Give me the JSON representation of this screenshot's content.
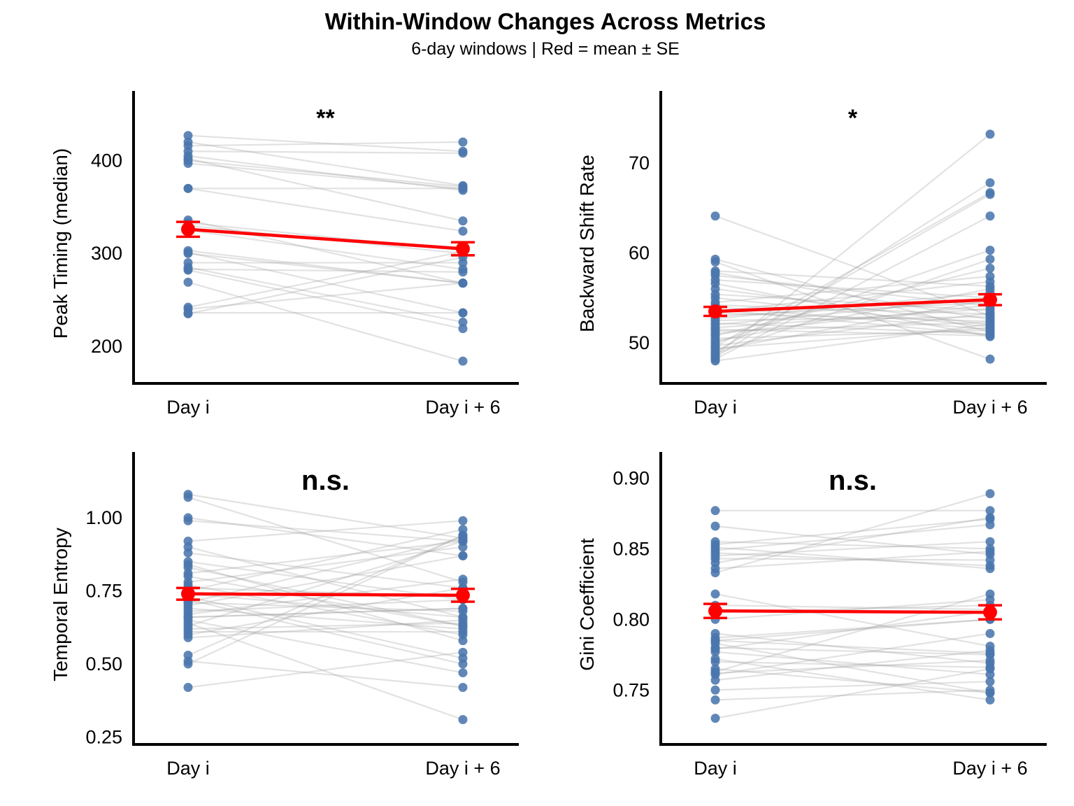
{
  "title": "Within-Window Changes Across Metrics",
  "subtitle": "6-day windows | Red = mean ± SE",
  "colors": {
    "point": "#4a76ad",
    "line": "#9e9e9e",
    "mean": "#ff0000",
    "axis": "#000000"
  },
  "chart_data": [
    {
      "type": "scatter",
      "title": "",
      "categories": [
        "Day i",
        "Day i + 6"
      ],
      "ylabel": "Peak Timing (median)",
      "ylim": [
        160,
        475
      ],
      "yticks": [
        200,
        300,
        400
      ],
      "significance": "**",
      "mean": [
        326,
        305
      ],
      "se": [
        8,
        7
      ],
      "pairs": [
        [
          427,
          410
        ],
        [
          420,
          373
        ],
        [
          416,
          420
        ],
        [
          410,
          408
        ],
        [
          405,
          368
        ],
        [
          402,
          335
        ],
        [
          400,
          372
        ],
        [
          397,
          370
        ],
        [
          370,
          324
        ],
        [
          370,
          370
        ],
        [
          336,
          268
        ],
        [
          333,
          303
        ],
        [
          330,
          300
        ],
        [
          325,
          283
        ],
        [
          303,
          268
        ],
        [
          301,
          236
        ],
        [
          300,
          268
        ],
        [
          290,
          290
        ],
        [
          285,
          226
        ],
        [
          283,
          280
        ],
        [
          282,
          219
        ],
        [
          269,
          184
        ],
        [
          242,
          302
        ],
        [
          240,
          268
        ],
        [
          236,
          236
        ],
        [
          235,
          296
        ]
      ]
    },
    {
      "type": "scatter",
      "title": "",
      "categories": [
        "Day i",
        "Day i + 6"
      ],
      "ylabel": "Backward Shift Rate",
      "ylim": [
        45.5,
        78
      ],
      "yticks": [
        50,
        60,
        70
      ],
      "significance": "*",
      "mean": [
        53.5,
        54.8
      ],
      "se": [
        0.5,
        0.6
      ],
      "pairs": [
        [
          64.1,
          53.0
        ],
        [
          59.3,
          51.2
        ],
        [
          59.0,
          48.2
        ],
        [
          58.0,
          56.3
        ],
        [
          57.8,
          52.6
        ],
        [
          57.5,
          54.1
        ],
        [
          57.0,
          55.0
        ],
        [
          56.6,
          50.7
        ],
        [
          56.0,
          52.0
        ],
        [
          55.4,
          53.6
        ],
        [
          55.0,
          51.8
        ],
        [
          54.5,
          57.4
        ],
        [
          54.2,
          53.2
        ],
        [
          54.0,
          51.5
        ],
        [
          53.7,
          50.9
        ],
        [
          53.5,
          56.8
        ],
        [
          53.3,
          52.4
        ],
        [
          53.0,
          54.5
        ],
        [
          52.7,
          55.6
        ],
        [
          52.5,
          52.9
        ],
        [
          52.2,
          51.0
        ],
        [
          52.0,
          55.0
        ],
        [
          51.7,
          53.8
        ],
        [
          51.3,
          52.3
        ],
        [
          51.0,
          54.2
        ],
        [
          50.8,
          58.3
        ],
        [
          50.5,
          51.4
        ],
        [
          50.2,
          56.0
        ],
        [
          50.0,
          60.3
        ],
        [
          49.7,
          53.3
        ],
        [
          49.4,
          51.7
        ],
        [
          49.2,
          54.8
        ],
        [
          49.0,
          66.5
        ],
        [
          48.8,
          59.3
        ],
        [
          48.6,
          73.2
        ],
        [
          48.4,
          67.8
        ],
        [
          48.2,
          64.1
        ],
        [
          48.0,
          52.1
        ],
        [
          49.6,
          66.7
        ],
        [
          51.5,
          50.8
        ]
      ]
    },
    {
      "type": "scatter",
      "title": "",
      "categories": [
        "Day i",
        "Day i + 6"
      ],
      "ylabel": "Temporal Entropy",
      "ylim": [
        0.225,
        1.225
      ],
      "yticks": [
        0.25,
        0.5,
        0.75,
        1.0
      ],
      "ytick_labels": [
        "0.25",
        "0.50",
        "0.75",
        "1.00"
      ],
      "significance": "n.s.",
      "mean": [
        0.74,
        0.735
      ],
      "se": [
        0.02,
        0.022
      ],
      "pairs": [
        [
          1.08,
          0.93
        ],
        [
          1.07,
          0.78
        ],
        [
          1.0,
          0.87
        ],
        [
          0.99,
          0.92
        ],
        [
          0.92,
          0.99
        ],
        [
          0.9,
          0.66
        ],
        [
          0.88,
          0.76
        ],
        [
          0.85,
          0.72
        ],
        [
          0.84,
          0.58
        ],
        [
          0.83,
          0.63
        ],
        [
          0.81,
          0.92
        ],
        [
          0.8,
          0.63
        ],
        [
          0.78,
          0.9
        ],
        [
          0.77,
          0.6
        ],
        [
          0.76,
          0.73
        ],
        [
          0.75,
          0.96
        ],
        [
          0.74,
          0.66
        ],
        [
          0.73,
          0.52
        ],
        [
          0.72,
          0.5
        ],
        [
          0.71,
          0.93
        ],
        [
          0.7,
          0.87
        ],
        [
          0.69,
          0.62
        ],
        [
          0.68,
          0.72
        ],
        [
          0.67,
          0.79
        ],
        [
          0.66,
          0.69
        ],
        [
          0.65,
          0.47
        ],
        [
          0.64,
          0.31
        ],
        [
          0.63,
          0.92
        ],
        [
          0.62,
          0.64
        ],
        [
          0.6,
          0.76
        ],
        [
          0.59,
          0.65
        ],
        [
          0.53,
          0.94
        ],
        [
          0.51,
          0.42
        ],
        [
          0.5,
          0.94
        ],
        [
          0.42,
          0.54
        ],
        [
          0.66,
          0.69
        ],
        [
          0.71,
          0.68
        ],
        [
          0.61,
          0.61
        ]
      ]
    },
    {
      "type": "scatter",
      "title": "",
      "categories": [
        "Day i",
        "Day i + 6"
      ],
      "ylabel": "Gini Coefficient",
      "ylim": [
        0.7115,
        0.9185
      ],
      "yticks": [
        0.75,
        0.8,
        0.85,
        0.9
      ],
      "ytick_labels": [
        "0.75",
        "0.80",
        "0.85",
        "0.90"
      ],
      "significance": "n.s.",
      "mean": [
        0.806,
        0.805
      ],
      "se": [
        0.005,
        0.005
      ],
      "pairs": [
        [
          0.877,
          0.877
        ],
        [
          0.866,
          0.846
        ],
        [
          0.855,
          0.85
        ],
        [
          0.853,
          0.871
        ],
        [
          0.851,
          0.836
        ],
        [
          0.849,
          0.867
        ],
        [
          0.847,
          0.838
        ],
        [
          0.845,
          0.855
        ],
        [
          0.843,
          0.842
        ],
        [
          0.84,
          0.872
        ],
        [
          0.836,
          0.848
        ],
        [
          0.833,
          0.889
        ],
        [
          0.818,
          0.781
        ],
        [
          0.81,
          0.807
        ],
        [
          0.805,
          0.81
        ],
        [
          0.8,
          0.814
        ],
        [
          0.79,
          0.769
        ],
        [
          0.787,
          0.8
        ],
        [
          0.785,
          0.776
        ],
        [
          0.783,
          0.748
        ],
        [
          0.78,
          0.775
        ],
        [
          0.777,
          0.761
        ],
        [
          0.772,
          0.743
        ],
        [
          0.77,
          0.766
        ],
        [
          0.765,
          0.748
        ],
        [
          0.763,
          0.818
        ],
        [
          0.761,
          0.79
        ],
        [
          0.757,
          0.778
        ],
        [
          0.75,
          0.756
        ],
        [
          0.743,
          0.75
        ],
        [
          0.73,
          0.765
        ],
        [
          0.779,
          0.806
        ],
        [
          0.785,
          0.8
        ],
        [
          0.762,
          0.771
        ]
      ]
    }
  ]
}
